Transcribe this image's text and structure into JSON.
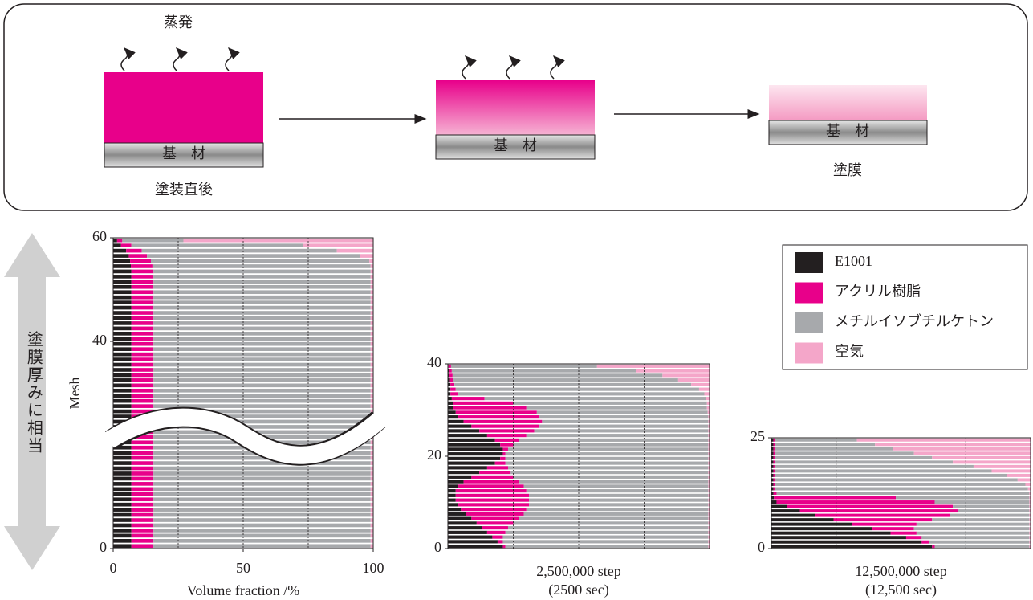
{
  "diagram": {
    "evaporation": "蒸発",
    "substrate": [
      "基　材",
      "基　材",
      "基　材"
    ],
    "stage_start": "塗装直後",
    "stage_end": "塗膜",
    "side_arrow": "塗膜厚みに相当"
  },
  "chart_data": [
    {
      "type": "stacked-barh",
      "ylabel": "Mesh",
      "xlabel": "Volume fraction /%",
      "xlim": [
        0,
        100
      ],
      "xticks": [
        0,
        50,
        100
      ],
      "xgrid": [
        25,
        50,
        75
      ],
      "ylim": [
        0,
        60
      ],
      "yticks": [
        0,
        40,
        60
      ],
      "categories": [
        null,
        null,
        null,
        null,
        null,
        null,
        null,
        null,
        null,
        null,
        null,
        null,
        null,
        null,
        null,
        null,
        null,
        null,
        null,
        null,
        null,
        null,
        null,
        null,
        null,
        null,
        null,
        null,
        null,
        null,
        null,
        null,
        null,
        null,
        null,
        null,
        null,
        null,
        null,
        null,
        null,
        null,
        null,
        null,
        null,
        null,
        null,
        null,
        null,
        null,
        null,
        null,
        null,
        null,
        null,
        null,
        null,
        null,
        null,
        null
      ],
      "series": [
        {
          "name": "E1001",
          "color": "#231f20",
          "values": [
            7,
            7,
            7,
            7,
            7,
            7,
            7,
            7,
            7,
            7,
            7,
            7,
            7,
            7,
            7,
            7,
            7,
            7,
            7,
            7,
            7,
            7,
            7,
            7,
            7,
            7,
            7,
            7,
            7,
            7,
            7,
            7,
            7,
            7,
            7,
            7,
            7,
            7,
            7,
            7,
            7,
            7,
            7,
            7,
            7,
            7,
            7,
            7,
            7,
            7,
            7,
            7,
            7,
            7,
            6.8,
            6.5,
            6,
            5,
            3,
            1.5
          ]
        },
        {
          "name": "アクリル樹脂",
          "color": "#e8008a",
          "values": [
            8.5,
            8.5,
            8.5,
            8.5,
            8.5,
            8.5,
            8.5,
            8.5,
            8.5,
            8.5,
            8.5,
            8.5,
            8.5,
            8.5,
            8.5,
            8.5,
            8.5,
            8.5,
            8.5,
            8.5,
            8.5,
            8.5,
            8.5,
            8.5,
            8.5,
            8.5,
            8.5,
            8.5,
            8.5,
            8.5,
            8.5,
            8.5,
            8.5,
            8.5,
            8.5,
            8.5,
            8.5,
            8.5,
            8.5,
            8.5,
            8.5,
            8.5,
            8.5,
            8.5,
            8.5,
            8.5,
            8.5,
            8.5,
            8.5,
            8.5,
            8.5,
            8.5,
            8.5,
            8.5,
            8.3,
            8,
            7,
            6,
            4,
            2
          ]
        },
        {
          "name": "メチルイソブチルケトン",
          "color": "#a7a9ac",
          "values": [
            83.5,
            83.5,
            83.5,
            83.5,
            83.5,
            83.5,
            83.5,
            83.5,
            83.5,
            83.5,
            83.5,
            83.5,
            83.5,
            83.5,
            83.5,
            83.5,
            83.5,
            83.5,
            83.5,
            83.5,
            83.5,
            83.5,
            83.5,
            83.5,
            83.5,
            83.5,
            83.5,
            83.5,
            83.5,
            83.5,
            83.5,
            83.5,
            83.5,
            83.5,
            83.5,
            83.5,
            83.5,
            83.5,
            83.5,
            83.5,
            83.5,
            83.5,
            83.5,
            83.5,
            83.5,
            83.5,
            83.5,
            83.5,
            83.5,
            83.5,
            83.5,
            83.5,
            83.5,
            83.5,
            83.9,
            84,
            82,
            75,
            66,
            23.5
          ]
        },
        {
          "name": "空気",
          "color": "#f4a6c9",
          "values": [
            1,
            1,
            1,
            1,
            1,
            1,
            1,
            1,
            1,
            1,
            1,
            1,
            1,
            1,
            1,
            1,
            1,
            1,
            1,
            1,
            1,
            1,
            1,
            1,
            1,
            1,
            1,
            1,
            1,
            1,
            1,
            1,
            1,
            1,
            1,
            1,
            1,
            1,
            1,
            1,
            1,
            1,
            1,
            1,
            1,
            1,
            1,
            1,
            1,
            1,
            1,
            1,
            1,
            1,
            1,
            1.5,
            5,
            14,
            27,
            73
          ]
        }
      ]
    },
    {
      "type": "stacked-barh",
      "caption": "2,500,000 step",
      "subcaption": "(2500 sec)",
      "xlim": [
        0,
        100
      ],
      "xgrid": [
        25,
        50,
        75
      ],
      "ylim": [
        0,
        40
      ],
      "yticks": [
        0,
        20,
        40
      ],
      "categories": [
        null,
        null,
        null,
        null,
        null,
        null,
        null,
        null,
        null,
        null,
        null,
        null,
        null,
        null,
        null,
        null,
        null,
        null,
        null,
        null,
        null,
        null,
        null,
        null,
        null,
        null,
        null,
        null,
        null,
        null,
        null,
        null,
        null,
        null,
        null,
        null,
        null,
        null,
        null,
        null
      ],
      "series": [
        {
          "color": "#231f20",
          "values": [
            21,
            19,
            17,
            15,
            13,
            11,
            9,
            7,
            5,
            4,
            3,
            3,
            3,
            4,
            6,
            9,
            12,
            15,
            18,
            20,
            21,
            21,
            20,
            18,
            15,
            12,
            9,
            6,
            4,
            3,
            2,
            2,
            1.5,
            1,
            1,
            1,
            0.8,
            0.6,
            0.4,
            0.2
          ]
        },
        {
          "color": "#e8008a",
          "values": [
            1,
            2,
            4,
            7,
            10,
            14,
            18,
            22,
            25,
            27,
            28,
            28,
            27,
            25,
            21,
            16,
            12,
            8,
            4,
            2,
            1,
            2,
            5,
            9,
            15,
            21,
            26,
            30,
            31,
            31,
            28,
            23,
            12.5,
            3,
            2,
            1.5,
            1.2,
            1.2,
            1.1,
            1
          ]
        },
        {
          "color": "#a7a9ac",
          "values": [
            77.5,
            78.5,
            78.5,
            77.5,
            76.5,
            74.5,
            72.5,
            70.5,
            69.5,
            68.5,
            68.5,
            68.5,
            69.5,
            70.5,
            72.5,
            74.5,
            75.5,
            76.5,
            77.5,
            77.5,
            77.5,
            76.5,
            74.5,
            72.5,
            69.5,
            66.5,
            64.5,
            63.5,
            64.5,
            65.3,
            69,
            74,
            84.5,
            94,
            93,
            90.5,
            86,
            80.2,
            70.5,
            55.8
          ]
        },
        {
          "color": "#f4a6c9",
          "values": [
            0.5,
            0.5,
            0.5,
            0.5,
            0.5,
            0.5,
            0.5,
            0.5,
            0.5,
            0.5,
            0.5,
            0.5,
            0.5,
            0.5,
            0.5,
            0.5,
            0.5,
            0.5,
            0.5,
            0.5,
            0.5,
            0.5,
            0.5,
            0.5,
            0.5,
            0.5,
            0.5,
            0.5,
            0.5,
            0.7,
            1,
            1,
            1.5,
            2,
            4,
            7,
            12,
            18,
            28,
            43
          ]
        }
      ]
    },
    {
      "type": "stacked-barh",
      "caption": "12,500,000 step",
      "subcaption": "(12,500 sec)",
      "xlim": [
        0,
        100
      ],
      "xgrid": [
        25,
        50,
        75
      ],
      "ylim": [
        0,
        25
      ],
      "yticks": [
        0,
        25
      ],
      "categories": [
        null,
        null,
        null,
        null,
        null,
        null,
        null,
        null,
        null,
        null,
        null,
        null,
        null,
        null,
        null,
        null,
        null,
        null,
        null,
        null,
        null,
        null,
        null,
        null,
        null
      ],
      "series": [
        {
          "color": "#231f20",
          "values": [
            62,
            58,
            52,
            46,
            39,
            31,
            24,
            17,
            11,
            6,
            2,
            1,
            0.8,
            0.8,
            0.8,
            0.8,
            0.8,
            0.8,
            0.8,
            0.8,
            0.8,
            0.8,
            0.8,
            0.8,
            0.8
          ]
        },
        {
          "color": "#e8008a",
          "values": [
            1,
            3,
            6,
            10,
            16,
            25,
            38,
            52,
            61,
            64,
            61,
            47,
            1.2,
            0.7,
            0.5,
            0.5,
            0.5,
            0.5,
            0.5,
            0.5,
            0.5,
            0.5,
            0.5,
            0.5,
            0.5
          ]
        },
        {
          "color": "#a7a9ac",
          "values": [
            36.5,
            38.5,
            41.5,
            43.5,
            44.5,
            43.5,
            37.5,
            30.5,
            27.5,
            29.5,
            36.5,
            51.5,
            97.5,
            97.5,
            96.7,
            93.7,
            89.7,
            83.7,
            76.7,
            68.7,
            60.7,
            53.7,
            45.7,
            38.7,
            31.7
          ]
        },
        {
          "color": "#f4a6c9",
          "values": [
            0.5,
            0.5,
            0.5,
            0.5,
            0.5,
            0.5,
            0.5,
            0.5,
            0.5,
            0.5,
            0.5,
            0.5,
            0.5,
            1,
            2,
            5,
            9,
            15,
            22,
            30,
            38,
            45,
            53,
            60,
            67
          ]
        }
      ]
    }
  ]
}
